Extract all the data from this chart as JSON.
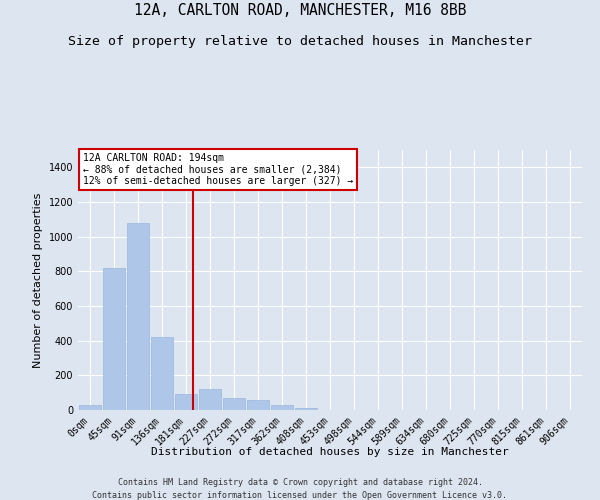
{
  "title": "12A, CARLTON ROAD, MANCHESTER, M16 8BB",
  "subtitle": "Size of property relative to detached houses in Manchester",
  "xlabel": "Distribution of detached houses by size in Manchester",
  "ylabel": "Number of detached properties",
  "footer_line1": "Contains HM Land Registry data © Crown copyright and database right 2024.",
  "footer_line2": "Contains public sector information licensed under the Open Government Licence v3.0.",
  "annotation_title": "12A CARLTON ROAD: 194sqm",
  "annotation_line1": "← 88% of detached houses are smaller (2,384)",
  "annotation_line2": "12% of semi-detached houses are larger (327) →",
  "bar_labels": [
    "0sqm",
    "45sqm",
    "91sqm",
    "136sqm",
    "181sqm",
    "227sqm",
    "272sqm",
    "317sqm",
    "362sqm",
    "408sqm",
    "453sqm",
    "498sqm",
    "544sqm",
    "589sqm",
    "634sqm",
    "680sqm",
    "725sqm",
    "770sqm",
    "815sqm",
    "861sqm",
    "906sqm"
  ],
  "bar_values": [
    30,
    820,
    1080,
    420,
    90,
    120,
    70,
    55,
    30,
    10,
    0,
    0,
    0,
    0,
    0,
    0,
    0,
    0,
    0,
    0,
    0
  ],
  "bar_color": "#aec6e8",
  "bar_edge_color": "#9ab8de",
  "vline_color": "#cc0000",
  "vline_x": 4.28,
  "background_color": "#dde5f0",
  "plot_bg_color": "#dde5f0",
  "grid_color": "#ffffff",
  "ylim": [
    0,
    1500
  ],
  "yticks": [
    0,
    200,
    400,
    600,
    800,
    1000,
    1200,
    1400
  ],
  "annotation_box_color": "#ffffff",
  "annotation_border_color": "#cc0000",
  "title_fontsize": 10.5,
  "subtitle_fontsize": 9.5,
  "label_fontsize": 8,
  "tick_fontsize": 7,
  "footer_fontsize": 6
}
